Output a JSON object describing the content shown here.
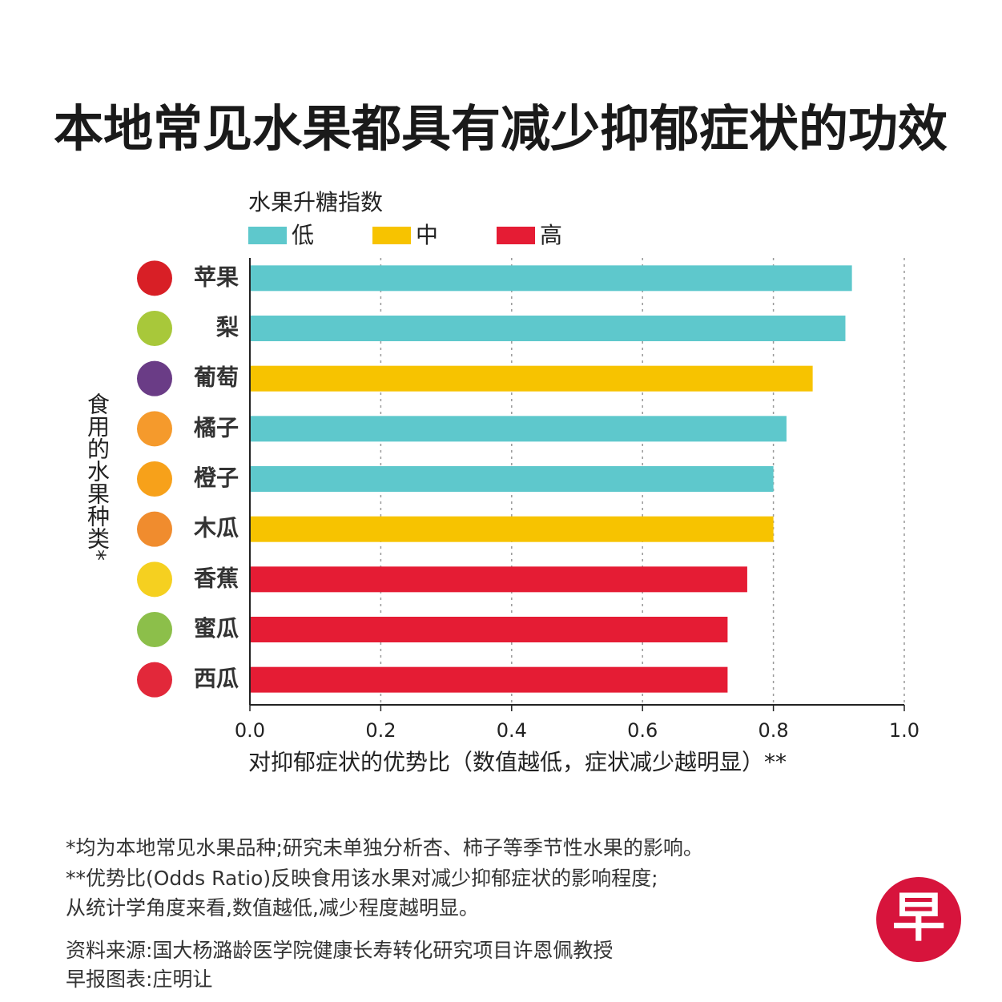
{
  "chart_data": {
    "type": "hbar",
    "title": "本地常见水果都具有减少抑郁症状的功效",
    "legend_title": "水果升糖指数",
    "y_label": "食用的水果种类*",
    "x_label": "对抑郁症状的优势比（数值越低，症状减少越明显）**",
    "categories": [
      "苹果",
      "梨",
      "葡萄",
      "橘子",
      "橙子",
      "木瓜",
      "香蕉",
      "蜜瓜",
      "西瓜"
    ],
    "series": [
      {
        "name": "低",
        "color": "#5ec8cc",
        "values": [
          0.92,
          0.91,
          null,
          0.82,
          0.8,
          null,
          null,
          null,
          null
        ]
      },
      {
        "name": "中",
        "color": "#f7c300",
        "values": [
          null,
          null,
          0.86,
          null,
          null,
          0.8,
          null,
          null,
          null
        ]
      },
      {
        "name": "高",
        "color": "#e51c34",
        "values": [
          null,
          null,
          null,
          null,
          null,
          null,
          0.76,
          0.73,
          0.73
        ]
      }
    ],
    "xlim": [
      0,
      1
    ],
    "xticks": [
      {
        "value": 0,
        "label": "0.0"
      },
      0.2,
      0.4,
      0.6,
      0.8,
      {
        "value": 1,
        "label": "1.0"
      }
    ],
    "grid": true,
    "notes": [
      "*均为本地常见水果品种;研究未单独分析杏、柿子等季节性水果的影响。",
      "**优势比(Odds Ratio)反映食用该水果对减少抑郁症状的影响程度;",
      "从统计学角度来看,数值越低,减少程度越明显。"
    ],
    "source": "资料来源:国大杨潞龄医学院健康长寿转化研究项目许恩佩教授",
    "credit": "早报图表:庄明让",
    "logo": "早"
  }
}
